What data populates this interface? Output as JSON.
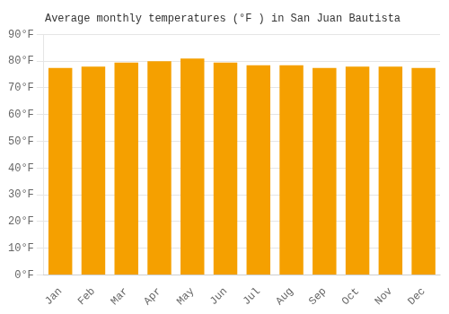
{
  "chart_data": {
    "type": "bar",
    "title": "Average monthly temperatures (°F ) in San Juan Bautista",
    "categories": [
      "Jan",
      "Feb",
      "Mar",
      "Apr",
      "May",
      "Jun",
      "Jul",
      "Aug",
      "Sep",
      "Oct",
      "Nov",
      "Dec"
    ],
    "values": [
      77.5,
      78.0,
      79.5,
      80.0,
      81.0,
      79.5,
      78.5,
      78.5,
      77.5,
      78.0,
      78.0,
      77.5
    ],
    "color": "#F5A000",
    "ylim": [
      0,
      90
    ],
    "yticks": [
      {
        "value": 0,
        "label": "0°F"
      },
      {
        "value": 10,
        "label": "10°F"
      },
      {
        "value": 20,
        "label": "20°F"
      },
      {
        "value": 30,
        "label": "30°F"
      },
      {
        "value": 40,
        "label": "40°F"
      },
      {
        "value": 50,
        "label": "50°F"
      },
      {
        "value": 60,
        "label": "60°F"
      },
      {
        "value": 70,
        "label": "70°F"
      },
      {
        "value": 80,
        "label": "80°F"
      },
      {
        "value": 90,
        "label": "90°F"
      }
    ],
    "grid": true
  }
}
